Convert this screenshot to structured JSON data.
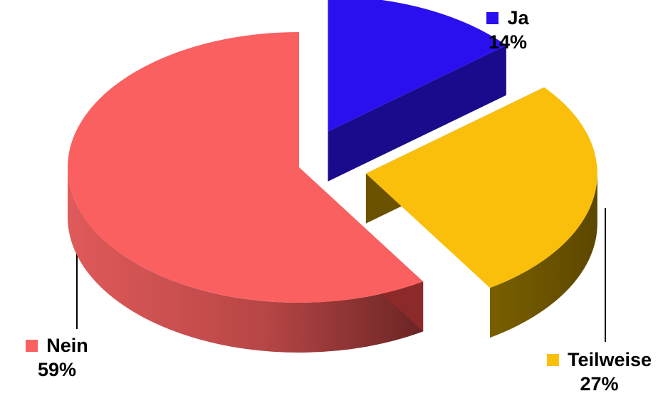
{
  "chart_data": {
    "type": "pie",
    "style": "3d-exploded",
    "slices": [
      {
        "label": "Ja",
        "value": 14,
        "value_label": "14%",
        "color": "#2a10ee",
        "side_color": "#1a0a8c"
      },
      {
        "label": "Teilweise",
        "value": 27,
        "value_label": "27%",
        "color": "#fabf0a",
        "side_color": "#6a5200"
      },
      {
        "label": "Nein",
        "value": 59,
        "value_label": "59%",
        "color": "#fa6060",
        "side_color": "#8c2a2a"
      }
    ],
    "title": "",
    "legend": "none"
  }
}
